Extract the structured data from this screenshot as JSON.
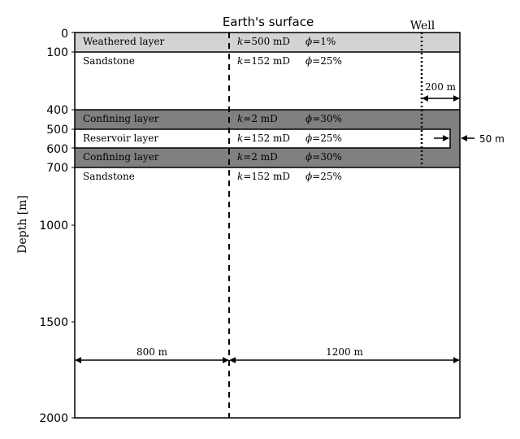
{
  "header": {
    "surface_label": "Earth's surface",
    "well_label": "Well"
  },
  "axis": {
    "label": "Depth [m]",
    "ticks": [
      "0",
      "100",
      "400",
      "500",
      "600",
      "700",
      "1000",
      "1500",
      "2000"
    ]
  },
  "layers": [
    {
      "name": "Weathered layer",
      "k": "=500 mD",
      "phi": "=1%",
      "fill": "#d3d3d3"
    },
    {
      "name": "Sandstone",
      "k": "=152 mD",
      "phi": "=25%",
      "fill": "#ffffff"
    },
    {
      "name": "Confining layer",
      "k": "=2 mD",
      "phi": "=30%",
      "fill": "#808080"
    },
    {
      "name": "Reservoir layer",
      "k": "=152 mD",
      "phi": "=25%",
      "fill": "#ffffff"
    },
    {
      "name": "Confining layer",
      "k": "=2 mD",
      "phi": "=30%",
      "fill": "#808080"
    },
    {
      "name": "Sandstone",
      "k": "=152 mD",
      "phi": "=25%",
      "fill": "#ffffff"
    }
  ],
  "symbols": {
    "k": "k",
    "phi": "ϕ"
  },
  "dimensions": {
    "well_offset": "200 m",
    "reservoir_thickness": "50 m",
    "left_width": "800 m",
    "right_width": "1200 m"
  }
}
